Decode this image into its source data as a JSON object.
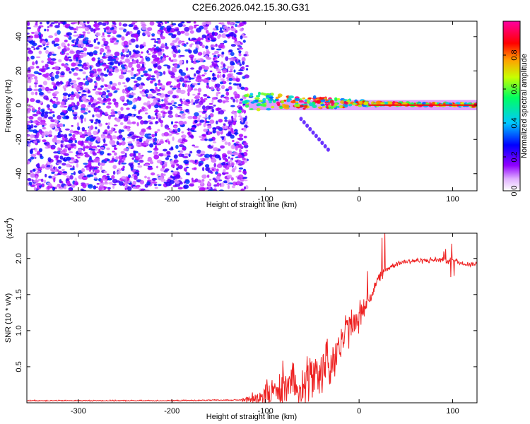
{
  "figure_title": "C2E6.2026.042.15.30.G31",
  "chart_data": [
    {
      "type": "heatmap",
      "title": "C2E6.2026.042.15.30.G31",
      "xlabel": "Height of straight line (km)",
      "ylabel": "Frequency (Hz)",
      "xlim": [
        -355,
        126
      ],
      "ylim": [
        -50,
        49
      ],
      "xticks": [
        -300,
        -200,
        -100,
        0,
        100
      ],
      "yticks": [
        -40,
        -20,
        0,
        20,
        40
      ],
      "colorbar": {
        "label": "Normalized spectral amplitude",
        "range": [
          0,
          1
        ],
        "ticks": [
          0.0,
          0.2,
          0.4,
          0.6,
          0.8
        ],
        "colors": [
          "#ffffff",
          "#b000ff",
          "#0000ff",
          "#00c8ff",
          "#00ff60",
          "#c8ff00",
          "#ffa000",
          "#ff0000",
          "#ff00a0"
        ]
      },
      "regions": [
        {
          "name": "broadband noise",
          "x_range": [
            -355,
            -124
          ],
          "freq_range": [
            -50,
            49
          ],
          "amplitude": [
            0.05,
            0.3
          ]
        },
        {
          "name": "signal track",
          "x_range": [
            -128,
            126
          ],
          "freq_center": [
            2,
            0
          ],
          "amplitude": [
            0.3,
            1.0
          ]
        },
        {
          "name": "sidelobe",
          "x_range": [
            -62,
            -33
          ],
          "freq_range": [
            -8,
            -26
          ],
          "amplitude": [
            0.1,
            0.25
          ]
        }
      ]
    },
    {
      "type": "line",
      "xlabel": "Height of straight line (km)",
      "ylabel": "SNR (10 * v/v)",
      "scale_label": "(x10",
      "scale_exp": "4",
      "xlim": [
        -355,
        126
      ],
      "ylim": [
        0,
        2.35
      ],
      "xticks": [
        -300,
        -200,
        -100,
        0,
        100
      ],
      "yticks": [
        0.5,
        1.0,
        1.5,
        2.0
      ],
      "ytick_labels": [
        "0.5",
        "1.0",
        "1.5",
        "2.0"
      ],
      "series": [
        {
          "name": "SNR",
          "color": "#ee2222",
          "x": [
            -355,
            -300,
            -200,
            -125,
            -110,
            -100,
            -90,
            -80,
            -70,
            -60,
            -50,
            -40,
            -30,
            -25,
            -20,
            -15,
            -10,
            -5,
            0,
            10,
            20,
            30,
            40,
            50,
            60,
            70,
            80,
            90,
            95,
            100,
            110,
            126
          ],
          "y": [
            0.03,
            0.03,
            0.03,
            0.04,
            0.07,
            0.12,
            0.15,
            0.2,
            0.25,
            0.3,
            0.35,
            0.45,
            0.6,
            0.7,
            0.78,
            0.95,
            1.05,
            1.1,
            1.2,
            1.42,
            1.7,
            1.86,
            1.93,
            1.96,
            1.97,
            1.97,
            1.98,
            1.98,
            1.95,
            1.98,
            1.93,
            1.92
          ]
        }
      ]
    }
  ]
}
